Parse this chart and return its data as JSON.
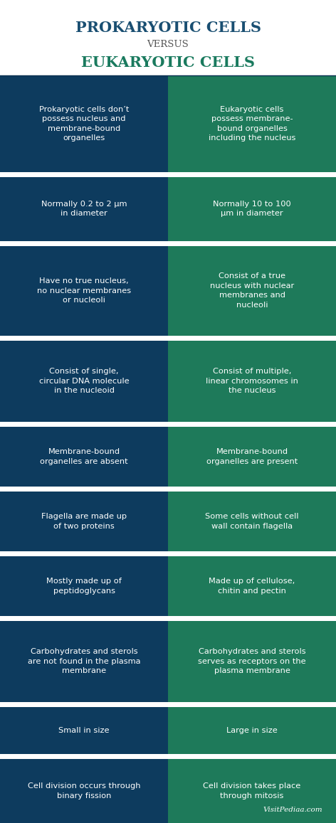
{
  "title_line1": "PROKARYOTIC CELLS",
  "title_line2": "VERSUS",
  "title_line3": "EUKARYOTIC CELLS",
  "title_color1": "#1a4f72",
  "title_color2": "#555555",
  "title_color3": "#1a7a5e",
  "left_bg": "#0d3b5e",
  "right_bg": "#1e7a5a",
  "divider_color": "#ffffff",
  "text_color": "#ffffff",
  "header_bg": "#ffffff",
  "watermark": "VisitPediaa.com",
  "rows": [
    {
      "left": "Prokaryotic cells don’t\npossess nucleus and\nmembrane-bound\norganelles",
      "right": "Eukaryotic cells\npossess membrane-\nbound organelles\nincluding the nucleus"
    },
    {
      "left": "Normally 0.2 to 2 μm\nin diameter",
      "right": "Normally 10 to 100\nμm in diameter"
    },
    {
      "left": "Have no true nucleus,\nno nuclear membranes\nor nucleoli",
      "right": "Consist of a true\nnucleus with nuclear\nmembranes and\nnucleoli"
    },
    {
      "left": "Consist of single,\ncircular DNA molecule\nin the nucleoid",
      "right": "Consist of multiple,\nlinear chromosomes in\nthe nucleus"
    },
    {
      "left": "Membrane-bound\norganelles are absent",
      "right": "Membrane-bound\norganelles are present"
    },
    {
      "left": "Flagella are made up\nof two proteins",
      "right": "Some cells without cell\nwall contain flagella"
    },
    {
      "left": "Mostly made up of\npeptidoglycans",
      "right": "Made up of cellulose,\nchitin and pectin"
    },
    {
      "left": "Carbohydrates and sterols\nare not found in the plasma\nmembrane",
      "right": "Carbohydrates and sterols\nserves as receptors on the\nplasma membrane"
    },
    {
      "left": "Small in size",
      "right": "Large in size"
    },
    {
      "left": "Cell division occurs through\nbinary fission",
      "right": "Cell division takes place\nthrough mitosis"
    }
  ],
  "row_weights": [
    4.5,
    3.0,
    4.2,
    3.8,
    2.8,
    2.8,
    2.8,
    3.8,
    2.2,
    3.0
  ]
}
